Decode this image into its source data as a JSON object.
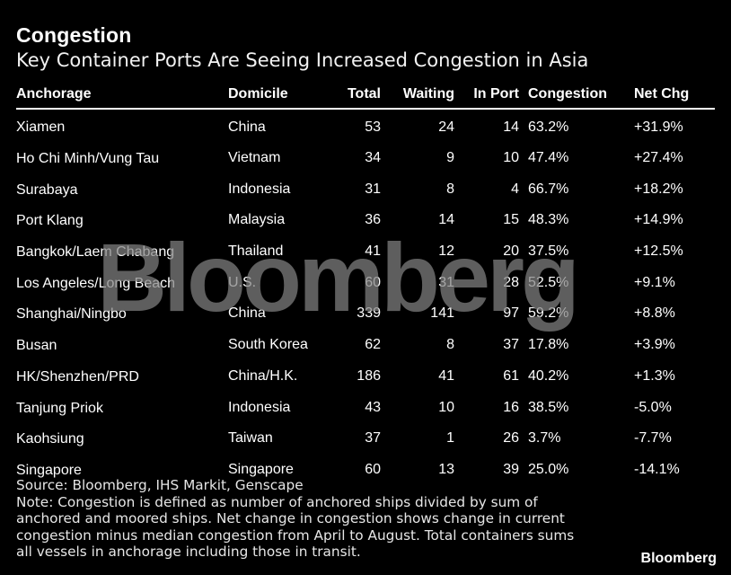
{
  "title": "Congestion",
  "subtitle": "Key Container Ports Are Seeing Increased Congestion in Asia",
  "chart_data": {
    "type": "table",
    "columns": [
      "Anchorage",
      "Domicile",
      "Total",
      "Waiting",
      "In Port",
      "Congestion",
      "Net Chg"
    ],
    "rows": [
      [
        "Xiamen",
        "China",
        "53",
        "24",
        "14",
        "63.2%",
        "+31.9%"
      ],
      [
        "Ho Chi Minh/Vung Tau",
        "Vietnam",
        "34",
        "9",
        "10",
        "47.4%",
        "+27.4%"
      ],
      [
        "Surabaya",
        "Indonesia",
        "31",
        "8",
        "4",
        "66.7%",
        "+18.2%"
      ],
      [
        "Port Klang",
        "Malaysia",
        "36",
        "14",
        "15",
        "48.3%",
        "+14.9%"
      ],
      [
        "Bangkok/Laem Chabang",
        "Thailand",
        "41",
        "12",
        "20",
        "37.5%",
        "+12.5%"
      ],
      [
        "Los Angeles/Long Beach",
        "U.S.",
        "60",
        "31",
        "28",
        "52.5%",
        "+9.1%"
      ],
      [
        "Shanghai/Ningbo",
        "China",
        "339",
        "141",
        "97",
        "59.2%",
        "+8.8%"
      ],
      [
        "Busan",
        "South Korea",
        "62",
        "8",
        "37",
        "17.8%",
        "+3.9%"
      ],
      [
        "HK/Shenzhen/PRD",
        "China/H.K.",
        "186",
        "41",
        "61",
        "40.2%",
        "+1.3%"
      ],
      [
        "Tanjung Priok",
        "Indonesia",
        "43",
        "10",
        "16",
        "38.5%",
        "-5.0%"
      ],
      [
        "Kaohsiung",
        "Taiwan",
        "37",
        "1",
        "26",
        "3.7%",
        "-7.7%"
      ],
      [
        "Singapore",
        "Singapore",
        "60",
        "13",
        "39",
        "25.0%",
        "-14.1%"
      ]
    ]
  },
  "watermark": "Bloomberg",
  "footer": {
    "source": "Source: Bloomberg, IHS Markit, Genscape",
    "note_lines": [
      "Note: Congestion is defined as number of anchored ships divided by sum of",
      "anchored and moored ships. Net change in congestion shows change in current",
      "congestion minus median congestion from April to August. Total containers sums",
      "all vessels in anchorage including those in transit."
    ]
  },
  "logo": "Bloomberg"
}
